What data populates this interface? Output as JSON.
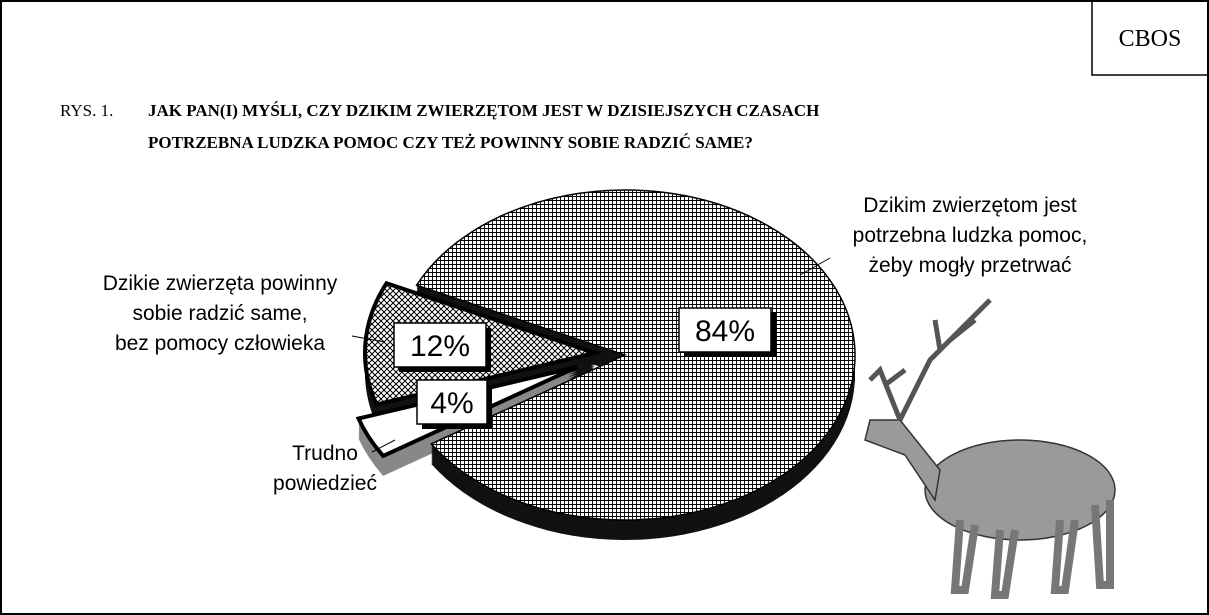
{
  "source": "CBOS",
  "chart_data": {
    "type": "pie",
    "figure_label": "RYS. 1.",
    "title": [
      "JAK PAN(I) MYŚLI, CZY DZIKIM ZWIERZĘTOM JEST W DZISIEJSZYCH CZASACH",
      "POTRZEBNA LUDZKA POMOC CZY TEŻ POWINNY SOBIE RADZIĆ SAME?"
    ],
    "categories": [
      [
        "Dzikim zwierzętom jest",
        "potrzebna ludzka pomoc,",
        "żeby mogły przetrwać"
      ],
      [
        "Dzikie zwierzęta powinny",
        "sobie radzić same,",
        "bez pomocy człowieka"
      ],
      [
        "Trudno",
        "powiedzieć"
      ]
    ],
    "values": [
      84,
      12,
      4
    ],
    "value_labels": [
      "84%",
      "12%",
      "4%"
    ]
  }
}
